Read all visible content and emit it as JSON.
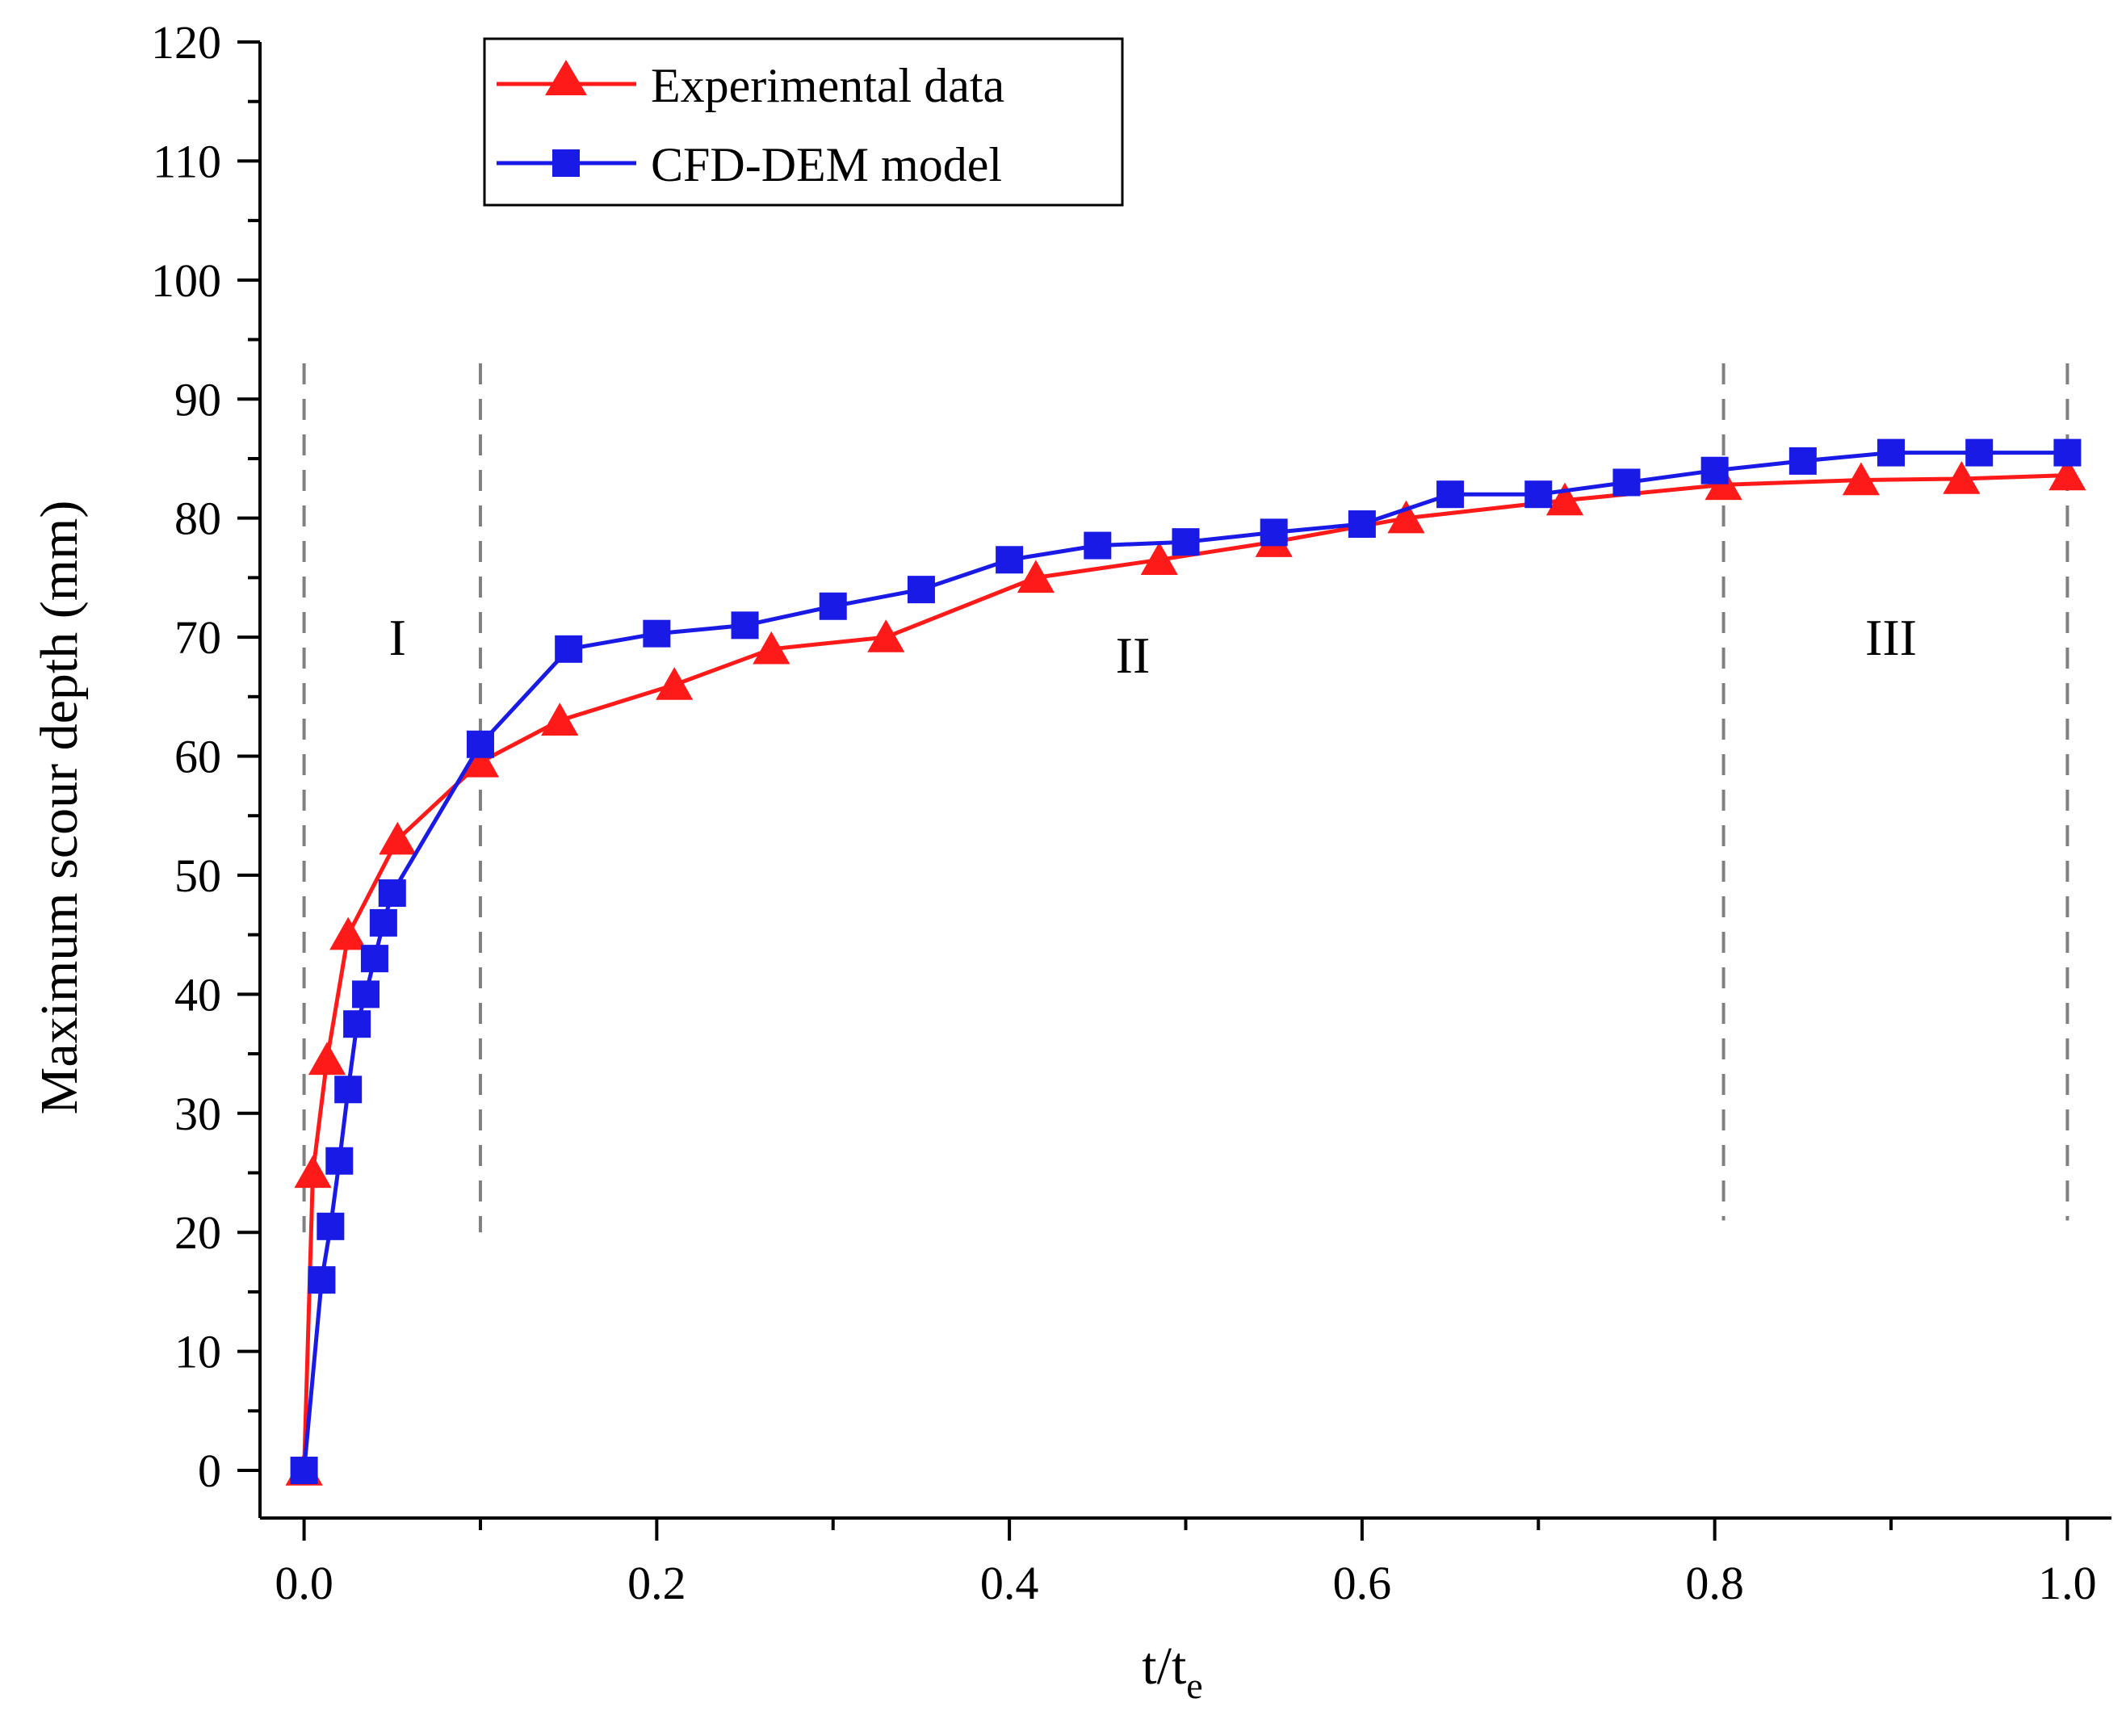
{
  "chart_data": {
    "type": "line",
    "title": "",
    "xlabel_main": "t/t",
    "xlabel_sub": "e",
    "ylabel": "Maximum scour depth (mm)",
    "xlim": [
      -0.025,
      1.025
    ],
    "ylim": [
      -4,
      120
    ],
    "xticks": [
      0.0,
      0.2,
      0.4,
      0.6,
      0.8,
      1.0
    ],
    "xtick_labels": [
      "0.0",
      "0.2",
      "0.4",
      "0.6",
      "0.8",
      "1.0"
    ],
    "yticks": [
      0,
      10,
      20,
      30,
      40,
      50,
      60,
      70,
      80,
      90,
      100,
      110,
      120
    ],
    "ytick_labels": [
      "0",
      "10",
      "20",
      "30",
      "40",
      "50",
      "60",
      "70",
      "80",
      "90",
      "100",
      "110",
      "120"
    ],
    "legend_position": "top-left",
    "series": [
      {
        "name": "Experimental data",
        "color": "#ff1a1a",
        "marker": "triangle",
        "x": [
          0.0,
          0.005,
          0.013,
          0.025,
          0.053,
          0.1,
          0.145,
          0.21,
          0.265,
          0.33,
          0.415,
          0.485,
          0.55,
          0.625,
          0.715,
          0.805,
          0.883,
          0.94,
          1.0
        ],
        "y": [
          0,
          25,
          34.5,
          45,
          53,
          59.5,
          63,
          66,
          69,
          70,
          75,
          76.5,
          78,
          80,
          81.5,
          82.8,
          83.2,
          83.3,
          83.6
        ]
      },
      {
        "name": "CFD-DEM model",
        "color": "#1a1ae6",
        "marker": "square",
        "x": [
          0.0,
          0.01,
          0.015,
          0.02,
          0.025,
          0.03,
          0.035,
          0.04,
          0.045,
          0.05,
          0.1,
          0.15,
          0.2,
          0.25,
          0.3,
          0.35,
          0.4,
          0.45,
          0.5,
          0.55,
          0.6,
          0.65,
          0.7,
          0.75,
          0.8,
          0.85,
          0.9,
          0.95,
          1.0
        ],
        "y": [
          0,
          16,
          20.5,
          26,
          32,
          37.5,
          40,
          43,
          46,
          48.5,
          61,
          69,
          70.3,
          71,
          72.6,
          74,
          76.5,
          77.7,
          78,
          78.8,
          79.5,
          82,
          82,
          83,
          84,
          84.8,
          85.5,
          85.5,
          85.5
        ]
      }
    ],
    "region_dividers_x": [
      0.0,
      0.1,
      0.805,
      1.0
    ],
    "region_labels": [
      {
        "text": "I",
        "x": 0.053,
        "y": 70
      },
      {
        "text": "II",
        "x": 0.47,
        "y": 68.5
      },
      {
        "text": "III",
        "x": 0.9,
        "y": 70
      }
    ]
  }
}
